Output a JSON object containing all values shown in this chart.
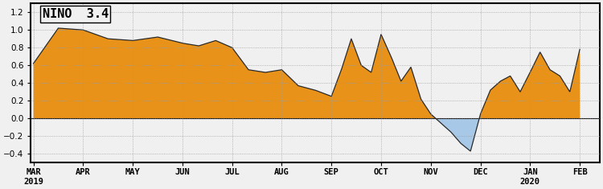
{
  "title": "NINO  3.4",
  "x_labels": [
    "MAR\n2019",
    "APR",
    "MAY",
    "JUN",
    "JUL",
    "AUG",
    "SEP",
    "OCT",
    "NOV",
    "DEC",
    "JAN\n2020",
    "FEB"
  ],
  "ylim": [
    -0.5,
    1.3
  ],
  "yticks": [
    -0.4,
    -0.2,
    0.0,
    0.2,
    0.4,
    0.6,
    0.8,
    1.0,
    1.2
  ],
  "color_positive": "#E8921A",
  "color_negative": "#A8C8E8",
  "background_color": "#F0F0F0",
  "line_color": "#2a2a2a",
  "values_x": [
    0,
    0.5,
    1,
    1.5,
    2,
    2.5,
    3,
    3.33,
    3.67,
    4,
    4.33,
    4.67,
    5,
    5.33,
    5.67,
    6,
    6.2,
    6.4,
    6.6,
    6.8,
    7,
    7.2,
    7.4,
    7.6,
    7.8,
    8,
    8.2,
    8.4,
    8.6,
    8.8,
    9,
    9.2,
    9.4,
    9.6,
    9.8,
    10,
    10.2,
    10.4,
    10.6,
    10.8,
    11
  ],
  "values_y": [
    0.62,
    1.02,
    1.0,
    0.9,
    0.88,
    0.92,
    0.85,
    0.82,
    0.88,
    0.8,
    0.55,
    0.52,
    0.55,
    0.37,
    0.32,
    0.25,
    0.55,
    0.9,
    0.6,
    0.52,
    0.95,
    0.7,
    0.42,
    0.58,
    0.22,
    0.05,
    -0.05,
    -0.15,
    -0.28,
    -0.37,
    0.05,
    0.32,
    0.42,
    0.48,
    0.3,
    0.52,
    0.75,
    0.55,
    0.48,
    0.3,
    0.78
  ]
}
